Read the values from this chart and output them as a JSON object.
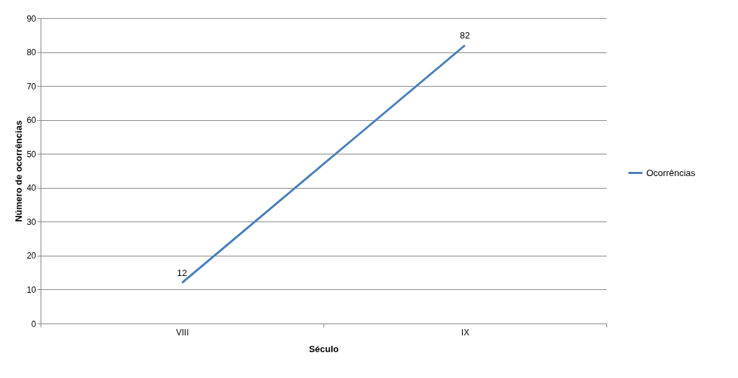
{
  "chart_data": {
    "type": "line",
    "xlabel": "Século",
    "ylabel": "Número de ocorrências",
    "categories": [
      "VIII",
      "IX"
    ],
    "series": [
      {
        "name": "Ocorrências",
        "color": "#4a7ebb",
        "values": [
          12,
          82
        ]
      }
    ],
    "ylim": [
      0,
      90
    ],
    "yticks": [
      0,
      10,
      20,
      30,
      40,
      50,
      60,
      70,
      80,
      90
    ],
    "grid": "y",
    "legend": "right",
    "data_labels": true,
    "marker": "none",
    "line_style": "solid"
  }
}
